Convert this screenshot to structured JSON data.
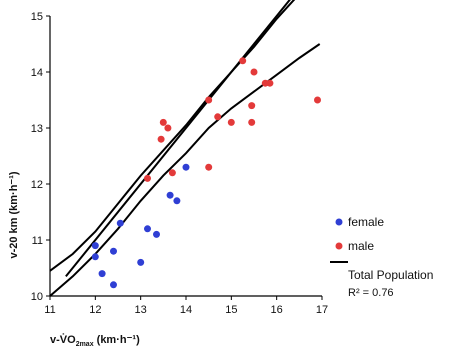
{
  "chart_data": {
    "type": "scatter",
    "xlim": [
      11,
      17
    ],
    "ylim": [
      10,
      15
    ],
    "x_ticks": [
      "11",
      "12",
      "13",
      "14",
      "15",
      "16",
      "17"
    ],
    "y_ticks": [
      "10",
      "11",
      "12",
      "13",
      "14",
      "15"
    ],
    "xlabel": {
      "main": "v-V̇O",
      "sub": "2max",
      "unit": " (km·h⁻¹)"
    },
    "ylabel": "v-20 km (km·h⁻¹)",
    "grid": false,
    "legend": {
      "placement": "bottom-right",
      "female_label": "female",
      "male_label": "male",
      "line_label": "Total Population",
      "stat_label": "R² = 0.76"
    },
    "colors": {
      "female": "#2f3fd4",
      "male": "#e33a3a",
      "line": "#000000"
    },
    "series": [
      {
        "name": "female",
        "points": [
          [
            12.0,
            10.9
          ],
          [
            12.0,
            10.7
          ],
          [
            12.15,
            10.4
          ],
          [
            12.4,
            10.8
          ],
          [
            12.4,
            10.2
          ],
          [
            12.55,
            11.3
          ],
          [
            13.0,
            10.6
          ],
          [
            13.15,
            11.2
          ],
          [
            13.35,
            11.1
          ],
          [
            13.65,
            11.8
          ],
          [
            13.8,
            11.7
          ],
          [
            14.0,
            12.3
          ]
        ]
      },
      {
        "name": "male",
        "points": [
          [
            13.15,
            12.1
          ],
          [
            13.45,
            12.8
          ],
          [
            13.5,
            13.1
          ],
          [
            13.6,
            13.0
          ],
          [
            13.7,
            12.2
          ],
          [
            14.5,
            12.3
          ],
          [
            14.5,
            13.5
          ],
          [
            14.7,
            13.2
          ],
          [
            15.0,
            13.1
          ],
          [
            15.25,
            14.2
          ],
          [
            15.45,
            13.1
          ],
          [
            15.45,
            13.4
          ],
          [
            15.5,
            14.0
          ],
          [
            15.75,
            13.8
          ],
          [
            15.85,
            13.8
          ],
          [
            16.9,
            13.5
          ]
        ]
      }
    ],
    "regression": {
      "slope": 1.0,
      "intercept": -1.0,
      "x_range": [
        11.35,
        16.55
      ]
    },
    "confidence_band": {
      "upper": [
        [
          11.0,
          10.45
        ],
        [
          11.5,
          10.75
        ],
        [
          12.0,
          11.15
        ],
        [
          12.5,
          11.65
        ],
        [
          13.0,
          12.15
        ],
        [
          13.5,
          12.6
        ],
        [
          14.0,
          13.05
        ],
        [
          14.5,
          13.55
        ],
        [
          15.0,
          14.0
        ],
        [
          15.5,
          14.45
        ],
        [
          16.0,
          14.95
        ],
        [
          16.45,
          15.35
        ]
      ],
      "lower": [
        [
          11.0,
          10.0
        ],
        [
          11.5,
          10.35
        ],
        [
          12.0,
          10.75
        ],
        [
          12.5,
          11.2
        ],
        [
          13.0,
          11.7
        ],
        [
          13.5,
          12.15
        ],
        [
          14.0,
          12.55
        ],
        [
          14.5,
          13.0
        ],
        [
          15.0,
          13.35
        ],
        [
          15.5,
          13.65
        ],
        [
          16.0,
          13.95
        ],
        [
          16.5,
          14.25
        ],
        [
          16.95,
          14.5
        ]
      ]
    }
  }
}
